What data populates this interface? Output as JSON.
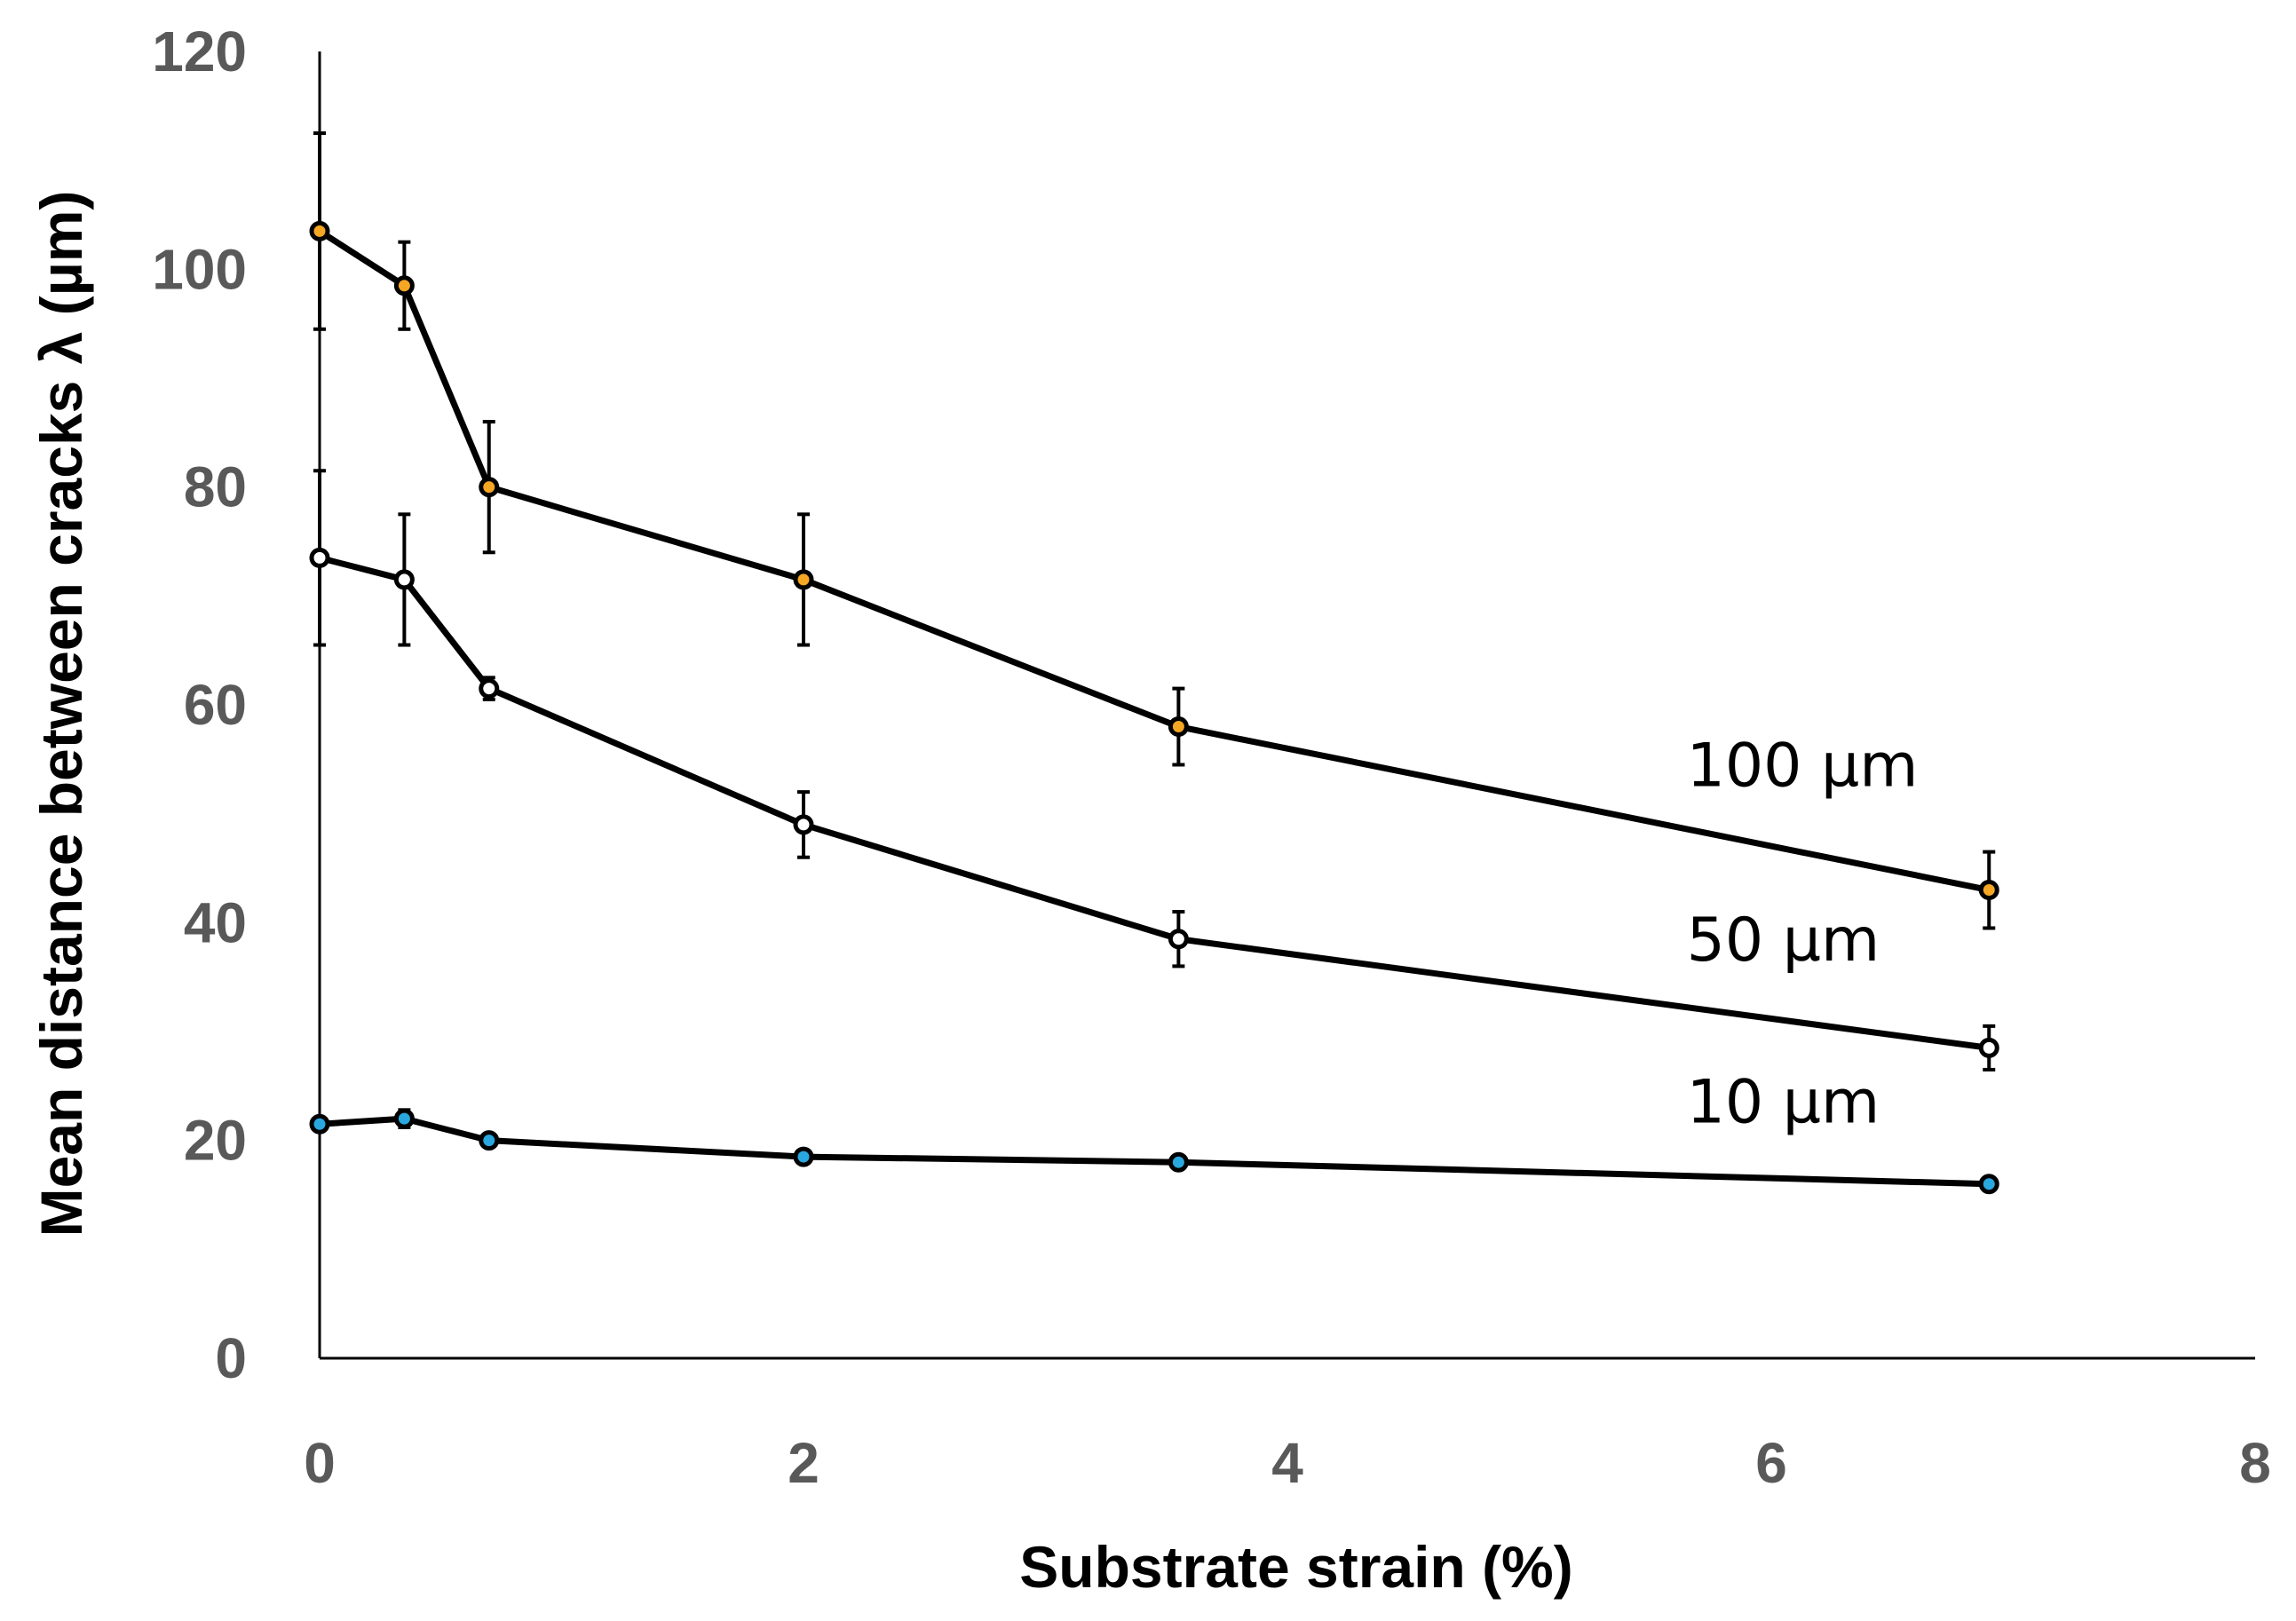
{
  "chart_data": {
    "type": "line",
    "title": "",
    "xlabel": "Substrate strain  (%)",
    "ylabel": "Mean distance between cracks   λ (µm)",
    "xlim": [
      0,
      8
    ],
    "ylim": [
      0,
      120
    ],
    "xticks": [
      0,
      2,
      4,
      6,
      8
    ],
    "yticks": [
      0,
      20,
      40,
      60,
      80,
      100,
      120
    ],
    "grid": false,
    "legend": "none (inline series labels at right)",
    "series": [
      {
        "name": "100 µm",
        "label": "100 µm",
        "marker_color": "#f5a623",
        "x": [
          0,
          0.35,
          0.7,
          2.0,
          3.55,
          6.9
        ],
        "y": [
          103.5,
          98.5,
          80.0,
          71.5,
          58.0,
          43.0
        ],
        "err": [
          9.0,
          4.0,
          6.0,
          6.0,
          3.5,
          3.5
        ]
      },
      {
        "name": "50 µm",
        "label": "50 µm",
        "marker_color": "#ffffff",
        "x": [
          0,
          0.35,
          0.7,
          2.0,
          3.55,
          6.9
        ],
        "y": [
          73.5,
          71.5,
          61.5,
          49.0,
          38.5,
          28.5
        ],
        "err": [
          8.0,
          6.0,
          1.0,
          3.0,
          2.5,
          2.0
        ]
      },
      {
        "name": "10 µm",
        "label": "10 µm",
        "marker_color": "#29a8df",
        "x": [
          0,
          0.35,
          0.7,
          2.0,
          3.55,
          6.9
        ],
        "y": [
          21.5,
          22.0,
          20.0,
          18.5,
          18.0,
          16.0
        ],
        "err": [
          0.3,
          0.8,
          0.5,
          0.3,
          0.3,
          0.3
        ]
      }
    ]
  }
}
